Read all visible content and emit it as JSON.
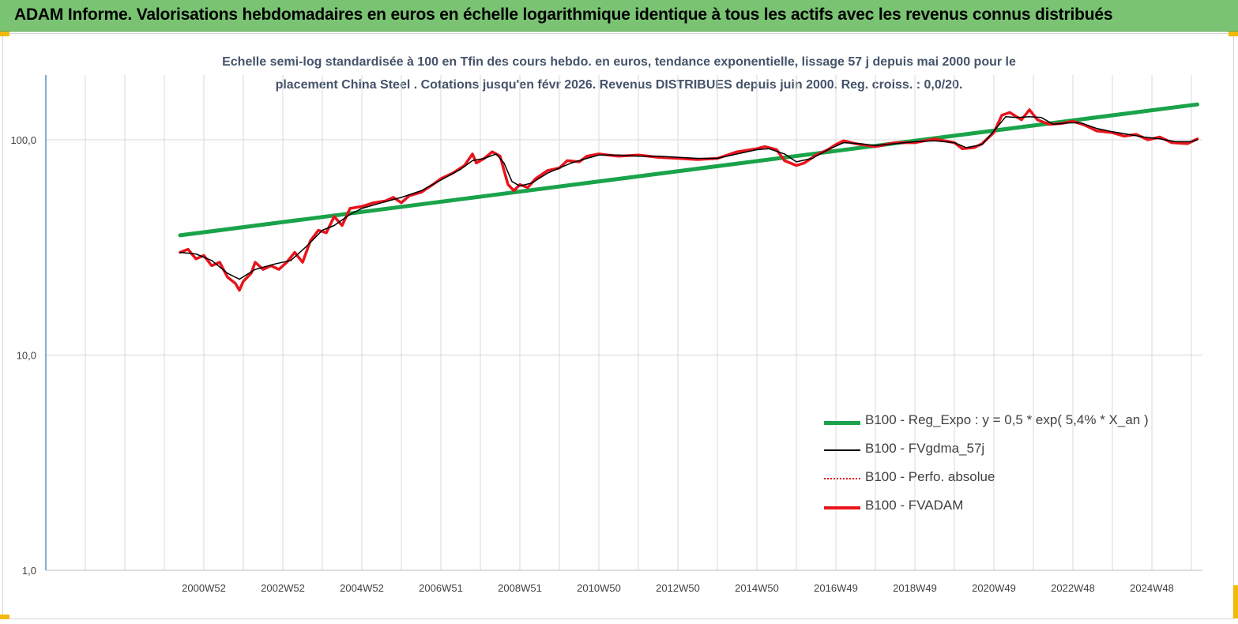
{
  "banner": {
    "title": "ADAM Informe. Valorisations hebdomadaires en euros en échelle logarithmique identique à tous les actifs avec les revenus connus distribués"
  },
  "colors": {
    "banner": "#7ac373",
    "corner": "#f2b90a",
    "trend": "#1aa34a",
    "fvadam": "#e8141c",
    "moving_avg": "#000000",
    "perfo": "#e8141c",
    "grid": "#d9d9d9",
    "axis": "#2e75b6"
  },
  "chart_data": {
    "type": "line",
    "title_line1": "Echelle semi-log standardisée à 100 en Tfin des cours hebdo. en euros, tendance exponentielle, lissage 57 j depuis mai 2000 pour le",
    "title_line2": "placement China Steel . Cotations jusqu'en févr 2026. Revenus DISTRIBUES depuis juin 2000. Reg. croiss. : 0,0/20.",
    "y_scale": "log",
    "ylim": [
      1,
      200
    ],
    "y_ticks": [
      {
        "value": 1,
        "label": "1,0"
      },
      {
        "value": 10,
        "label": "10,0"
      },
      {
        "value": 100,
        "label": "100,0"
      }
    ],
    "x_ticks": [
      "2000W52",
      "2002W52",
      "2004W52",
      "2006W51",
      "2008W51",
      "2010W50",
      "2012W50",
      "2014W50",
      "2016W49",
      "2018W49",
      "2020W49",
      "2022W48",
      "2024W48"
    ],
    "grid": true,
    "legend_position": "bottom-right",
    "series": [
      {
        "name": "B100 - Reg_Expo : y = 0,5 *  exp( 5,4% *   X_an )",
        "key": "trend",
        "style": "thick",
        "points": [
          [
            2000.4,
            36
          ],
          [
            2026.15,
            146
          ]
        ]
      },
      {
        "name": "B100 - FVgdma_57j",
        "key": "moving_avg",
        "style": "thin",
        "points": [
          [
            2000.4,
            30
          ],
          [
            2000.8,
            29.5
          ],
          [
            2001.2,
            27.5
          ],
          [
            2001.6,
            24
          ],
          [
            2001.9,
            22.5
          ],
          [
            2002.3,
            25
          ],
          [
            2002.8,
            26.5
          ],
          [
            2003.2,
            27.5
          ],
          [
            2003.6,
            32
          ],
          [
            2004.0,
            38
          ],
          [
            2004.3,
            40
          ],
          [
            2004.7,
            45
          ],
          [
            2005.0,
            48
          ],
          [
            2005.5,
            51
          ],
          [
            2006.0,
            54
          ],
          [
            2006.5,
            58
          ],
          [
            2007.0,
            65
          ],
          [
            2007.5,
            73
          ],
          [
            2007.8,
            80
          ],
          [
            2008.1,
            82
          ],
          [
            2008.4,
            86
          ],
          [
            2008.6,
            78
          ],
          [
            2008.8,
            64
          ],
          [
            2009.0,
            61
          ],
          [
            2009.3,
            63
          ],
          [
            2009.7,
            70
          ],
          [
            2010.0,
            74
          ],
          [
            2010.3,
            78
          ],
          [
            2010.7,
            82
          ],
          [
            2011.0,
            85
          ],
          [
            2011.5,
            85
          ],
          [
            2012.0,
            84
          ],
          [
            2012.5,
            84
          ],
          [
            2013.0,
            83
          ],
          [
            2013.5,
            82
          ],
          [
            2014.0,
            82
          ],
          [
            2014.5,
            86
          ],
          [
            2015.0,
            90
          ],
          [
            2015.3,
            91
          ],
          [
            2015.7,
            86
          ],
          [
            2016.0,
            79
          ],
          [
            2016.4,
            82
          ],
          [
            2016.8,
            90
          ],
          [
            2017.2,
            97
          ],
          [
            2017.6,
            96
          ],
          [
            2018.0,
            94
          ],
          [
            2018.5,
            96
          ],
          [
            2019.0,
            98
          ],
          [
            2019.5,
            99
          ],
          [
            2020.0,
            97
          ],
          [
            2020.3,
            92
          ],
          [
            2020.7,
            95
          ],
          [
            2021.0,
            110
          ],
          [
            2021.3,
            128
          ],
          [
            2021.6,
            127
          ],
          [
            2021.9,
            128
          ],
          [
            2022.2,
            127
          ],
          [
            2022.5,
            118
          ],
          [
            2022.9,
            120
          ],
          [
            2023.2,
            120
          ],
          [
            2023.6,
            113
          ],
          [
            2024.0,
            109
          ],
          [
            2024.4,
            106
          ],
          [
            2024.8,
            103
          ],
          [
            2025.2,
            101
          ],
          [
            2025.6,
            98
          ],
          [
            2026.0,
            98
          ],
          [
            2026.15,
            100
          ]
        ]
      },
      {
        "name": "B100 - Perfo. absolue",
        "key": "perfo",
        "style": "dotted",
        "points": []
      },
      {
        "name": "B100 - FVADAM",
        "key": "fvadam",
        "style": "thick",
        "points": [
          [
            2000.4,
            30
          ],
          [
            2000.6,
            31
          ],
          [
            2000.8,
            28
          ],
          [
            2001.0,
            29
          ],
          [
            2001.2,
            26
          ],
          [
            2001.4,
            27
          ],
          [
            2001.6,
            23
          ],
          [
            2001.8,
            21.5
          ],
          [
            2001.9,
            20
          ],
          [
            2002.0,
            22
          ],
          [
            2002.2,
            24
          ],
          [
            2002.3,
            27
          ],
          [
            2002.5,
            25
          ],
          [
            2002.7,
            26
          ],
          [
            2002.9,
            25
          ],
          [
            2003.1,
            27
          ],
          [
            2003.3,
            30
          ],
          [
            2003.5,
            27
          ],
          [
            2003.7,
            34
          ],
          [
            2003.9,
            38
          ],
          [
            2004.1,
            37
          ],
          [
            2004.3,
            44
          ],
          [
            2004.5,
            40
          ],
          [
            2004.7,
            48
          ],
          [
            2005.0,
            49
          ],
          [
            2005.3,
            51
          ],
          [
            2005.6,
            52
          ],
          [
            2005.8,
            54
          ],
          [
            2006.0,
            51
          ],
          [
            2006.2,
            55
          ],
          [
            2006.5,
            57
          ],
          [
            2006.8,
            62
          ],
          [
            2007.0,
            66
          ],
          [
            2007.3,
            70
          ],
          [
            2007.6,
            76
          ],
          [
            2007.8,
            86
          ],
          [
            2007.9,
            78
          ],
          [
            2008.1,
            82
          ],
          [
            2008.3,
            88
          ],
          [
            2008.5,
            84
          ],
          [
            2008.6,
            72
          ],
          [
            2008.7,
            62
          ],
          [
            2008.85,
            58
          ],
          [
            2009.0,
            62
          ],
          [
            2009.2,
            60
          ],
          [
            2009.4,
            66
          ],
          [
            2009.7,
            72
          ],
          [
            2010.0,
            74
          ],
          [
            2010.2,
            80
          ],
          [
            2010.5,
            79
          ],
          [
            2010.7,
            84
          ],
          [
            2011.0,
            86
          ],
          [
            2011.5,
            84
          ],
          [
            2012.0,
            85
          ],
          [
            2012.5,
            83
          ],
          [
            2013.0,
            82
          ],
          [
            2013.5,
            81
          ],
          [
            2014.0,
            82
          ],
          [
            2014.5,
            88
          ],
          [
            2015.0,
            91
          ],
          [
            2015.2,
            93
          ],
          [
            2015.5,
            90
          ],
          [
            2015.7,
            80
          ],
          [
            2016.0,
            76
          ],
          [
            2016.2,
            78
          ],
          [
            2016.5,
            85
          ],
          [
            2016.8,
            90
          ],
          [
            2017.0,
            95
          ],
          [
            2017.2,
            99
          ],
          [
            2017.5,
            96
          ],
          [
            2018.0,
            93
          ],
          [
            2018.5,
            97
          ],
          [
            2019.0,
            97
          ],
          [
            2019.5,
            101
          ],
          [
            2020.0,
            97
          ],
          [
            2020.2,
            91
          ],
          [
            2020.5,
            92
          ],
          [
            2020.7,
            96
          ],
          [
            2021.0,
            108
          ],
          [
            2021.2,
            130
          ],
          [
            2021.4,
            134
          ],
          [
            2021.7,
            124
          ],
          [
            2021.9,
            138
          ],
          [
            2022.1,
            124
          ],
          [
            2022.4,
            118
          ],
          [
            2022.7,
            119
          ],
          [
            2023.0,
            122
          ],
          [
            2023.3,
            117
          ],
          [
            2023.6,
            110
          ],
          [
            2024.0,
            108
          ],
          [
            2024.3,
            104
          ],
          [
            2024.6,
            106
          ],
          [
            2024.9,
            100
          ],
          [
            2025.2,
            103
          ],
          [
            2025.5,
            97
          ],
          [
            2025.9,
            96
          ],
          [
            2026.15,
            101
          ]
        ]
      }
    ]
  }
}
